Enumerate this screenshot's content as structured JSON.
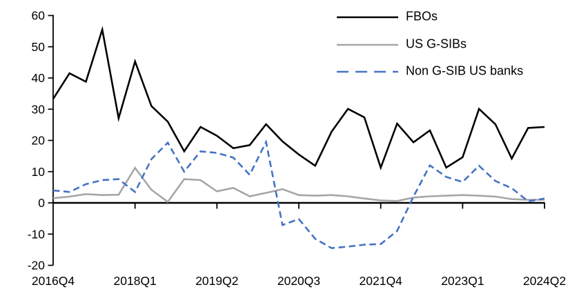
{
  "chart_data": {
    "type": "line",
    "title": "",
    "xlabel": "",
    "ylabel": "",
    "ylim": [
      -20,
      60
    ],
    "grid": "off",
    "legend_position": "top-right",
    "categories": [
      "2016Q4",
      "2017Q1",
      "2017Q2",
      "2017Q3",
      "2017Q4",
      "2018Q1",
      "2018Q2",
      "2018Q3",
      "2018Q4",
      "2019Q1",
      "2019Q2",
      "2019Q3",
      "2019Q4",
      "2020Q1",
      "2020Q2",
      "2020Q3",
      "2020Q4",
      "2021Q1",
      "2021Q2",
      "2021Q3",
      "2021Q4",
      "2022Q1",
      "2022Q2",
      "2022Q3",
      "2022Q4",
      "2023Q1",
      "2023Q2",
      "2023Q3",
      "2023Q4",
      "2024Q1",
      "2024Q2"
    ],
    "series": [
      {
        "name": "FBOs",
        "color": "#000000",
        "style": "solid",
        "values": [
          33.3,
          41.5,
          38.8,
          55.5,
          27.1,
          45.3,
          31.0,
          26.0,
          16.5,
          24.3,
          21.5,
          17.5,
          18.5,
          25.2,
          19.7,
          15.5,
          11.9,
          22.8,
          30.1,
          27.4,
          11.3,
          25.4,
          19.4,
          23.2,
          11.3,
          14.6,
          30.1,
          25.2,
          14.2,
          24.0,
          24.3
        ]
      },
      {
        "name": "US G-SIBs",
        "color": "#A6A6A6",
        "style": "solid",
        "values": [
          1.5,
          2.0,
          2.8,
          2.5,
          2.6,
          11.2,
          4.2,
          0.3,
          7.6,
          7.3,
          3.7,
          4.8,
          2.1,
          3.2,
          4.4,
          2.5,
          2.3,
          2.5,
          2.1,
          1.4,
          0.8,
          0.6,
          1.7,
          2.1,
          2.3,
          2.5,
          2.3,
          2.0,
          1.2,
          1.0,
          1.0
        ]
      },
      {
        "name": "Non G-SIB US banks",
        "color": "#4472C4",
        "style": "dashed",
        "values": [
          4.0,
          3.5,
          6.0,
          7.3,
          7.6,
          3.5,
          14.0,
          19.3,
          10.0,
          16.5,
          16.0,
          14.5,
          9.0,
          19.5,
          -7.1,
          -5.2,
          -11.5,
          -14.5,
          -14.0,
          -13.4,
          -13.2,
          -9.0,
          2.0,
          12.0,
          8.3,
          6.7,
          11.9,
          7.0,
          4.7,
          0.5,
          1.4
        ]
      }
    ],
    "xtick_labels": [
      "2016Q4",
      "2018Q1",
      "2019Q2",
      "2020Q3",
      "2021Q4",
      "2023Q1",
      "2024Q2"
    ],
    "xtick_indices": [
      0,
      5,
      10,
      15,
      20,
      25,
      30
    ],
    "ytick_labels": [
      "60",
      "50",
      "40",
      "30",
      "20",
      "10",
      "0",
      "-10",
      "-20"
    ]
  }
}
